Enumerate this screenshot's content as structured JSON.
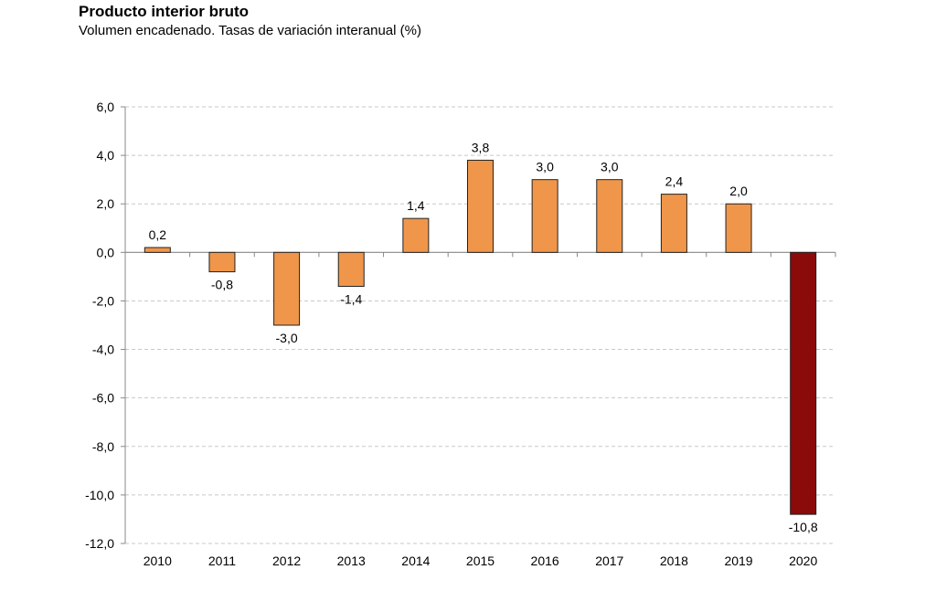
{
  "chart_data": {
    "type": "bar",
    "title": "Producto interior bruto",
    "subtitle": "Volumen encadenado. Tasas de variación interanual (%)",
    "categories": [
      "2010",
      "2011",
      "2012",
      "2013",
      "2014",
      "2015",
      "2016",
      "2017",
      "2018",
      "2019",
      "2020"
    ],
    "values": [
      0.2,
      -0.8,
      -3.0,
      -1.4,
      1.4,
      3.8,
      3.0,
      3.0,
      2.4,
      2.0,
      -10.8
    ],
    "value_labels": [
      "0,2",
      "-0,8",
      "-3,0",
      "-1,4",
      "1,4",
      "3,8",
      "3,0",
      "3,0",
      "2,4",
      "2,0",
      "-10,8"
    ],
    "ylim": [
      -12,
      6
    ],
    "yticks": [
      6,
      4,
      2,
      0,
      -2,
      -4,
      -6,
      -8,
      -10,
      -12
    ],
    "ytick_labels": [
      "6,0",
      "4,0",
      "2,0",
      "0,0",
      "-2,0",
      "-4,0",
      "-6,0",
      "-8,0",
      "-10,0",
      "-12,0"
    ],
    "xlabel": "",
    "ylabel": "",
    "grid": true,
    "colors": {
      "bar": "#F0964A",
      "highlight_bar": "#8B0A0A",
      "bar_stroke": "#222222",
      "grid": "#c8c8c8",
      "axis": "#888888"
    },
    "highlight_category": "2020"
  }
}
